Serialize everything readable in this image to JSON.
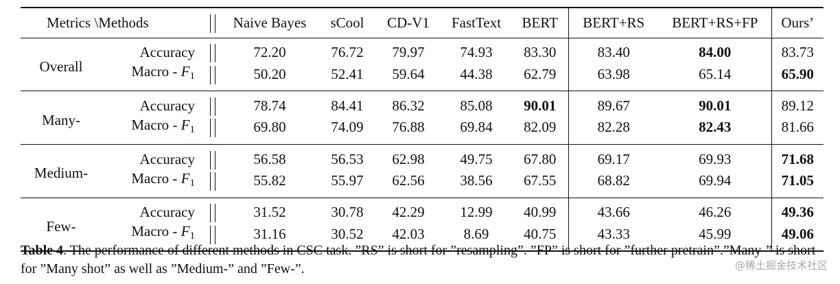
{
  "table": {
    "corner_header": "Metrics \\Methods",
    "methods": [
      "Naive Bayes",
      "sCool",
      "CD-V1",
      "FastText",
      "BERT",
      "BERT+RS",
      "BERT+RS+FP",
      "Ours’"
    ],
    "metric_labels": {
      "accuracy": "Accuracy",
      "macro_prefix": "Macro - ",
      "macro_var": "F",
      "macro_sub": "1"
    },
    "groups": [
      {
        "name": "Overall",
        "accuracy": [
          "72.20",
          "76.72",
          "79.97",
          "74.93",
          "83.30",
          "83.40",
          "84.00",
          "83.73"
        ],
        "accuracy_bold": [
          false,
          false,
          false,
          false,
          false,
          false,
          true,
          false
        ],
        "macro_f1": [
          "50.20",
          "52.41",
          "59.64",
          "44.38",
          "62.79",
          "63.98",
          "65.14",
          "65.90"
        ],
        "macro_f1_bold": [
          false,
          false,
          false,
          false,
          false,
          false,
          false,
          true
        ]
      },
      {
        "name": "Many-",
        "accuracy": [
          "78.74",
          "84.41",
          "86.32",
          "85.08",
          "90.01",
          "89.67",
          "90.01",
          "89.12"
        ],
        "accuracy_bold": [
          false,
          false,
          false,
          false,
          true,
          false,
          true,
          false
        ],
        "macro_f1": [
          "69.80",
          "74.09",
          "76.88",
          "69.84",
          "82.09",
          "82.28",
          "82.43",
          "81.66"
        ],
        "macro_f1_bold": [
          false,
          false,
          false,
          false,
          false,
          false,
          true,
          false
        ]
      },
      {
        "name": "Medium-",
        "accuracy": [
          "56.58",
          "56.53",
          "62.98",
          "49.75",
          "67.80",
          "69.17",
          "69.93",
          "71.68"
        ],
        "accuracy_bold": [
          false,
          false,
          false,
          false,
          false,
          false,
          false,
          true
        ],
        "macro_f1": [
          "55.82",
          "55.97",
          "62.56",
          "38.56",
          "67.55",
          "68.82",
          "69.94",
          "71.05"
        ],
        "macro_f1_bold": [
          false,
          false,
          false,
          false,
          false,
          false,
          false,
          true
        ]
      },
      {
        "name": "Few-",
        "accuracy": [
          "31.52",
          "30.78",
          "42.29",
          "12.99",
          "40.99",
          "43.66",
          "46.26",
          "49.36"
        ],
        "accuracy_bold": [
          false,
          false,
          false,
          false,
          false,
          false,
          false,
          true
        ],
        "macro_f1": [
          "31.16",
          "30.52",
          "42.03",
          "8.69",
          "40.75",
          "43.33",
          "45.99",
          "49.06"
        ],
        "macro_f1_bold": [
          false,
          false,
          false,
          false,
          false,
          false,
          false,
          true
        ]
      }
    ]
  },
  "caption": {
    "label": "Table 4",
    "text": ".  The performance of different methods in CSC task.  ”RS” is short for ”resampling”.  ”FP” is short for ”further pretrain”.”Many-” is short for ”Many shot” as well as ”Medium-” and ”Few-”."
  },
  "watermark": "@稀土掘金技术社区"
}
